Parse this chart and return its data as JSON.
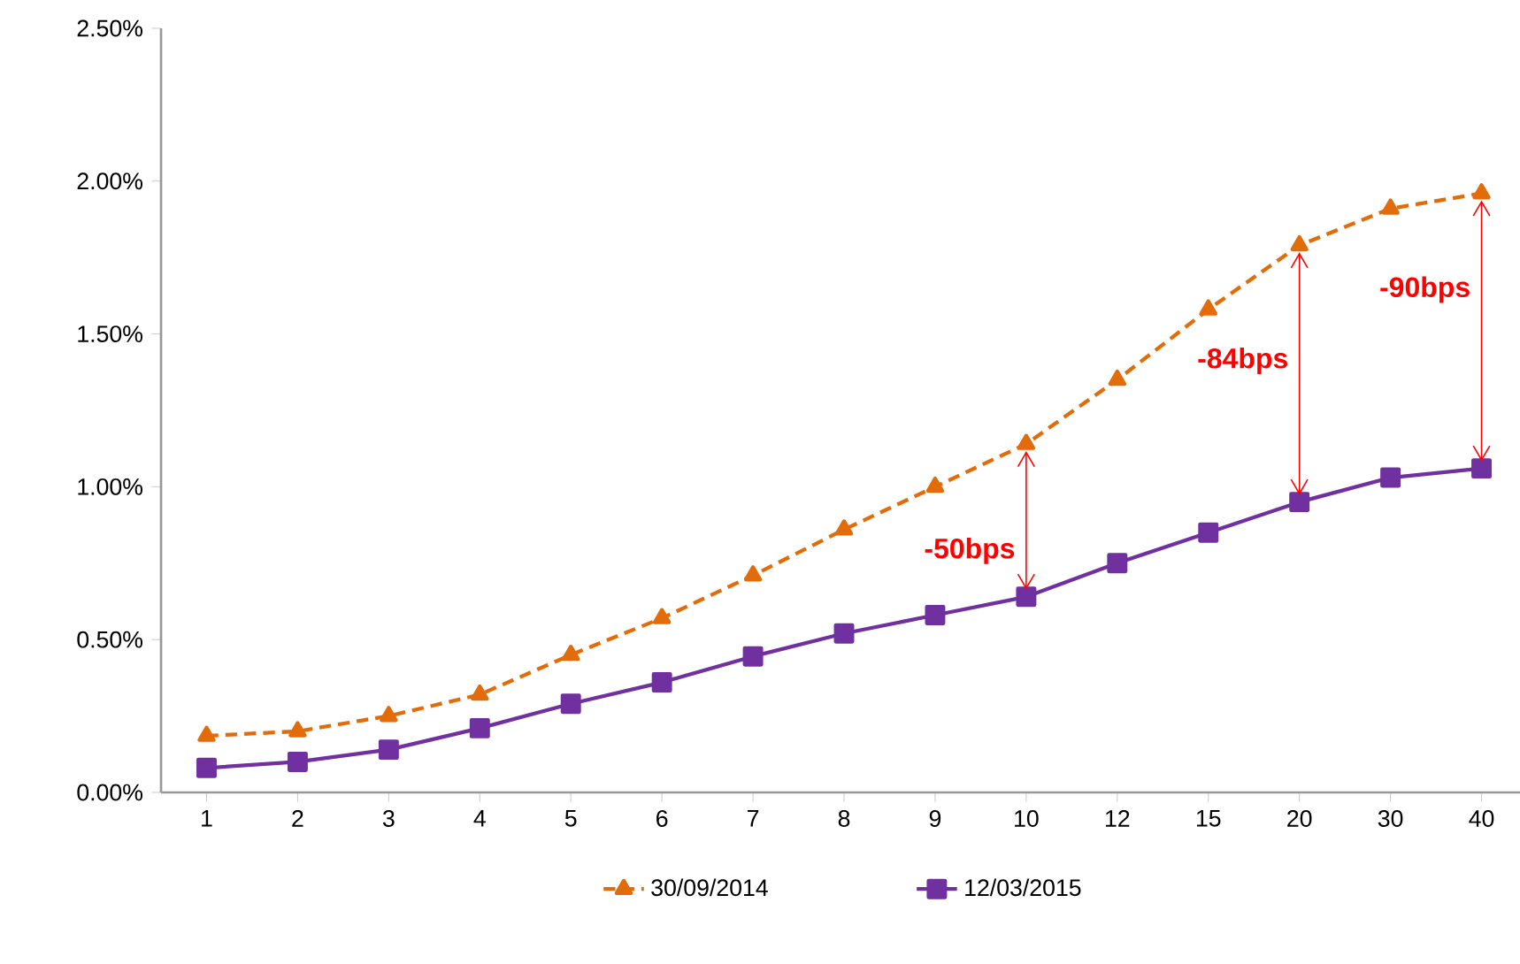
{
  "chart_data": {
    "type": "line",
    "categories": [
      "1",
      "2",
      "3",
      "4",
      "5",
      "6",
      "7",
      "8",
      "9",
      "10",
      "12",
      "15",
      "20",
      "30",
      "40"
    ],
    "series": [
      {
        "name": "30/09/2014",
        "color": "#e36c0a",
        "marker": "triangle",
        "line_style": "dashed",
        "values": [
          0.185,
          0.2,
          0.25,
          0.32,
          0.45,
          0.57,
          0.71,
          0.86,
          1.0,
          1.14,
          1.35,
          1.58,
          1.79,
          1.91,
          1.96
        ]
      },
      {
        "name": "12/03/2015",
        "color": "#7030a0",
        "marker": "square",
        "line_style": "solid",
        "values": [
          0.08,
          0.1,
          0.14,
          0.21,
          0.29,
          0.36,
          0.445,
          0.52,
          0.58,
          0.64,
          0.75,
          0.85,
          0.95,
          1.03,
          1.06
        ]
      }
    ],
    "ylim": [
      0,
      2.5
    ],
    "yticks": [
      {
        "value": 0,
        "label": "0.00%"
      },
      {
        "value": 0.5,
        "label": "0.50%"
      },
      {
        "value": 1,
        "label": "1.00%"
      },
      {
        "value": 1.5,
        "label": "1.50%"
      },
      {
        "value": 2,
        "label": "2.00%"
      },
      {
        "value": 2.5,
        "label": "2.50%"
      }
    ],
    "grid": false,
    "legend": "bottom",
    "annotations": [
      {
        "text": "-50bps",
        "x": "10",
        "y": 0.64
      },
      "-84bps",
      "-90bps"
    ]
  }
}
